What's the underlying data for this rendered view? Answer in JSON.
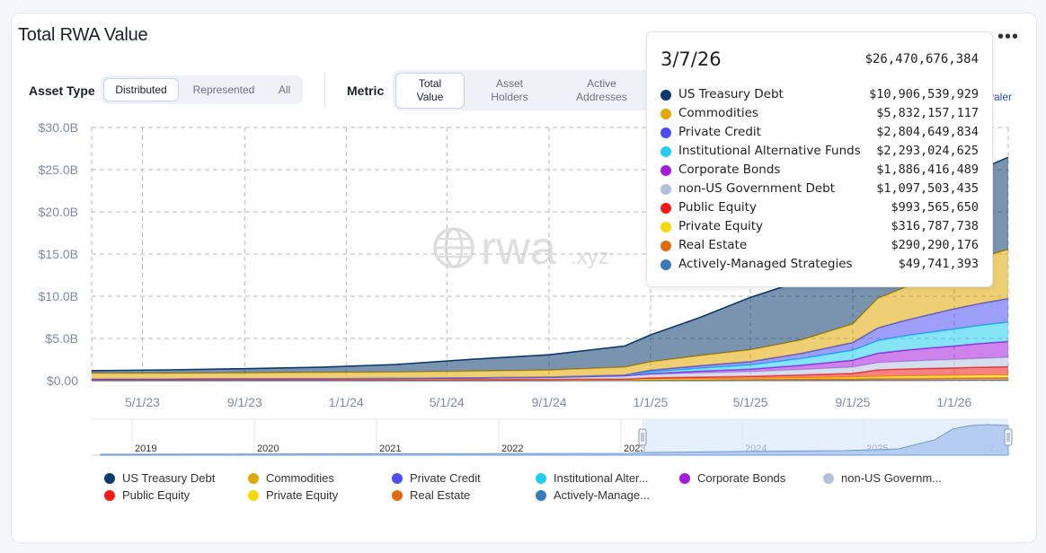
{
  "header": {
    "title": "Total RWA Value",
    "more_label": "•••"
  },
  "controls": {
    "asset_type": {
      "label": "Asset Type",
      "options": [
        "Distributed",
        "Represented",
        "All"
      ],
      "selected": "Distributed"
    },
    "metric": {
      "label": "Metric",
      "options": [
        "Total Value",
        "Asset Holders",
        "Active Addresses"
      ],
      "selected": "Total Value"
    },
    "equivalent_partial": "valer"
  },
  "watermark": {
    "brand": "rwa",
    "suffix": ".xyz"
  },
  "tooltip": {
    "date": "3/7/26",
    "total": "$26,470,676,384",
    "rows": [
      {
        "name": "US Treasury Debt",
        "value": "$10,906,539,929",
        "color": "#0d3a6e"
      },
      {
        "name": "Commodities",
        "value": "$5,832,157,117",
        "color": "#e0a800"
      },
      {
        "name": "Private Credit",
        "value": "$2,804,649,834",
        "color": "#4a4ef0"
      },
      {
        "name": "Institutional Alternative Funds",
        "value": "$2,293,024,625",
        "color": "#22cdf0"
      },
      {
        "name": "Corporate Bonds",
        "value": "$1,886,416,489",
        "color": "#a51cdc"
      },
      {
        "name": "non-US Government Debt",
        "value": "$1,097,503,435",
        "color": "#b3c2dc"
      },
      {
        "name": "Public Equity",
        "value": "$993,565,650",
        "color": "#f01b1b"
      },
      {
        "name": "Private Equity",
        "value": "$316,787,738",
        "color": "#f5d90a"
      },
      {
        "name": "Real Estate",
        "value": "$290,290,176",
        "color": "#e06a10"
      },
      {
        "name": "Actively-Managed Strategies",
        "value": "$49,741,393",
        "color": "#3a7ab8"
      }
    ]
  },
  "legend": [
    {
      "label": "US Treasury Debt",
      "color": "#0d3a6e"
    },
    {
      "label": "Commodities",
      "color": "#e0a800"
    },
    {
      "label": "Private Credit",
      "color": "#4a4ef0"
    },
    {
      "label": "Institutional Alter...",
      "color": "#22cdf0"
    },
    {
      "label": "Corporate Bonds",
      "color": "#a51cdc"
    },
    {
      "label": "non-US Governm...",
      "color": "#b3c2dc"
    },
    {
      "label": "Public Equity",
      "color": "#f01b1b"
    },
    {
      "label": "Private Equity",
      "color": "#f5d90a"
    },
    {
      "label": "Real Estate",
      "color": "#e06a10"
    },
    {
      "label": "Actively-Manage...",
      "color": "#3a7ab8"
    }
  ],
  "chart_data": {
    "type": "area",
    "stacked": true,
    "y_ticks": [
      "$0.00",
      "$5.0B",
      "$10.0B",
      "$15.0B",
      "$20.0B",
      "$25.0B",
      "$30.0B"
    ],
    "ylim": [
      0,
      30
    ],
    "y_unit": "B USD",
    "x_ticks": [
      "5/1/23",
      "9/1/23",
      "1/1/24",
      "5/1/24",
      "9/1/24",
      "1/1/25",
      "5/1/25",
      "9/1/25",
      "1/1/26"
    ],
    "xlim": [
      "2023-03-01",
      "2026-03-07"
    ],
    "grid": true,
    "x": [
      "2023-03-01",
      "2023-06-01",
      "2023-09-01",
      "2023-12-01",
      "2024-03-01",
      "2024-06-01",
      "2024-09-01",
      "2024-12-01",
      "2025-01-01",
      "2025-03-01",
      "2025-05-01",
      "2025-07-01",
      "2025-09-01",
      "2025-10-01",
      "2025-11-01",
      "2025-12-01",
      "2026-01-01",
      "2026-02-01",
      "2026-03-07"
    ],
    "series": [
      {
        "name": "Actively-Managed Strategies",
        "color": "#3a7ab8",
        "values": [
          0.01,
          0.01,
          0.01,
          0.01,
          0.01,
          0.01,
          0.01,
          0.02,
          0.02,
          0.02,
          0.03,
          0.03,
          0.03,
          0.04,
          0.04,
          0.04,
          0.05,
          0.05,
          0.05
        ]
      },
      {
        "name": "Real Estate",
        "color": "#e06a10",
        "values": [
          0.05,
          0.05,
          0.06,
          0.06,
          0.07,
          0.08,
          0.09,
          0.1,
          0.1,
          0.12,
          0.13,
          0.15,
          0.18,
          0.2,
          0.22,
          0.24,
          0.26,
          0.28,
          0.29
        ]
      },
      {
        "name": "Private Equity",
        "color": "#f5d90a",
        "values": [
          0.02,
          0.02,
          0.03,
          0.03,
          0.03,
          0.04,
          0.05,
          0.05,
          0.06,
          0.08,
          0.1,
          0.14,
          0.2,
          0.24,
          0.27,
          0.29,
          0.3,
          0.31,
          0.32
        ]
      },
      {
        "name": "Public Equity",
        "color": "#f01b1b",
        "values": [
          0.0,
          0.0,
          0.0,
          0.0,
          0.0,
          0.0,
          0.0,
          0.02,
          0.15,
          0.2,
          0.25,
          0.35,
          0.45,
          0.8,
          0.85,
          0.88,
          0.9,
          0.95,
          0.99
        ]
      },
      {
        "name": "non-US Government Debt",
        "color": "#b3c2dc",
        "values": [
          0.1,
          0.1,
          0.12,
          0.13,
          0.15,
          0.18,
          0.22,
          0.35,
          0.4,
          0.5,
          0.55,
          0.65,
          0.75,
          0.85,
          0.9,
          0.95,
          1.0,
          1.05,
          1.1
        ]
      },
      {
        "name": "Corporate Bonds",
        "color": "#a51cdc",
        "values": [
          0.0,
          0.0,
          0.0,
          0.0,
          0.0,
          0.02,
          0.03,
          0.05,
          0.1,
          0.2,
          0.3,
          0.5,
          0.8,
          1.1,
          1.3,
          1.45,
          1.6,
          1.75,
          1.89
        ]
      },
      {
        "name": "Institutional Alternative Funds",
        "color": "#22cdf0",
        "values": [
          0.0,
          0.0,
          0.0,
          0.0,
          0.0,
          0.0,
          0.01,
          0.05,
          0.2,
          0.35,
          0.5,
          0.8,
          1.2,
          1.5,
          1.7,
          1.85,
          2.0,
          2.15,
          2.29
        ]
      },
      {
        "name": "Private Credit",
        "color": "#4a4ef0",
        "values": [
          0.0,
          0.0,
          0.0,
          0.0,
          0.0,
          0.0,
          0.0,
          0.02,
          0.2,
          0.3,
          0.4,
          0.6,
          0.9,
          1.5,
          1.8,
          2.1,
          2.4,
          2.6,
          2.8
        ]
      },
      {
        "name": "Commodities",
        "color": "#e0a800",
        "values": [
          0.7,
          0.7,
          0.7,
          0.75,
          0.75,
          0.8,
          0.85,
          0.95,
          1.0,
          1.2,
          1.4,
          1.6,
          2.2,
          3.5,
          3.9,
          4.3,
          4.8,
          5.4,
          5.83
        ]
      },
      {
        "name": "US Treasury Debt",
        "color": "#0d3a6e",
        "values": [
          0.3,
          0.4,
          0.5,
          0.6,
          0.9,
          1.4,
          1.8,
          2.5,
          3.2,
          4.5,
          6.2,
          7.0,
          8.4,
          8.9,
          9.4,
          9.8,
          10.1,
          10.5,
          10.91
        ]
      }
    ]
  },
  "navigator": {
    "years": [
      "2019",
      "2020",
      "2021",
      "2022",
      "2023",
      "2024",
      "2025",
      "2..."
    ]
  }
}
